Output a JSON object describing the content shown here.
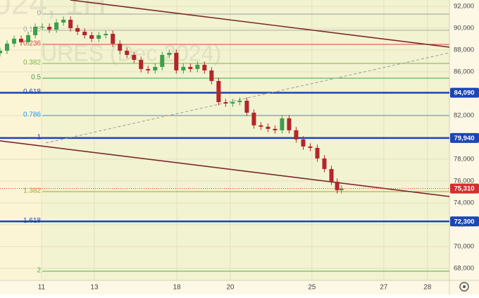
{
  "chart_data": {
    "type": "candlestick",
    "watermark": [
      "024, 1H",
      "URES (Dec 2024)"
    ],
    "x": [
      -1.53,
      -1.27,
      -1.01,
      -0.75,
      -0.49,
      -0.23,
      0.03,
      0.29,
      0.55,
      0.81,
      1.07,
      1.33,
      1.59,
      1.85,
      2.11,
      2.37,
      2.63,
      2.89,
      3.15,
      3.41,
      3.67,
      3.93,
      4.19,
      4.45,
      4.71,
      4.97,
      5.23,
      5.49,
      5.75,
      6.01,
      6.27,
      6.53,
      6.79,
      7.05,
      7.31,
      7.57,
      7.83,
      8.09,
      8.35,
      8.61,
      8.87,
      9.13,
      9.39,
      9.65,
      9.91,
      10.17,
      10.43,
      10.69,
      10.9,
      11.06
    ],
    "open": [
      87700,
      87936,
      88581,
      89033,
      88710,
      89355,
      90129,
      90129,
      89871,
      90516,
      90774,
      90000,
      89678,
      89355,
      89033,
      89355,
      89484,
      88581,
      87936,
      87549,
      87098,
      86259,
      86130,
      86453,
      87549,
      87743,
      86130,
      86453,
      86259,
      86646,
      86130,
      85163,
      83228,
      83099,
      83228,
      83357,
      82260,
      81099,
      80970,
      80777,
      80648,
      81744,
      80648,
      79809,
      79164,
      79035,
      78068,
      77100,
      75939,
      75165
    ],
    "high": [
      88236,
      88881,
      89333,
      89333,
      89655,
      90429,
      90429,
      90429,
      90816,
      91074,
      91074,
      90300,
      89978,
      89655,
      89655,
      89784,
      89784,
      88881,
      88236,
      87849,
      87398,
      86559,
      86753,
      87849,
      88043,
      88043,
      86753,
      86753,
      86946,
      86946,
      86430,
      85463,
      83528,
      83528,
      83657,
      83657,
      82560,
      81399,
      81270,
      81077,
      82044,
      82044,
      80948,
      80109,
      79464,
      79335,
      78368,
      77400,
      76239,
      75610
    ],
    "low": [
      87400,
      87636,
      88281,
      88410,
      88410,
      89055,
      89829,
      89571,
      89571,
      90216,
      89700,
      89378,
      89055,
      88733,
      88733,
      89055,
      88281,
      87636,
      87249,
      86798,
      85959,
      85830,
      85830,
      86153,
      87249,
      85830,
      85830,
      85959,
      85959,
      85830,
      84863,
      82928,
      82799,
      82799,
      82928,
      81960,
      80799,
      80670,
      80477,
      80348,
      80348,
      80348,
      79509,
      78864,
      78735,
      77768,
      76800,
      75639,
      74865,
      74865
    ],
    "close": [
      87936,
      88581,
      89033,
      88710,
      89355,
      90129,
      90129,
      89871,
      90516,
      90774,
      90000,
      89678,
      89355,
      89033,
      89355,
      89484,
      88581,
      87936,
      87549,
      87098,
      86259,
      86130,
      86453,
      87549,
      87743,
      86130,
      86453,
      86259,
      86646,
      86130,
      85163,
      83228,
      83099,
      83228,
      83357,
      82260,
      81099,
      80970,
      80777,
      80648,
      81744,
      80648,
      79809,
      79164,
      79035,
      78068,
      77100,
      75939,
      75165,
      75310
    ],
    "up_color": "#3f9e4a",
    "down_color": "#b3262a",
    "xlim": [
      -1.53,
      15.04
    ],
    "ylim": [
      66900,
      92580
    ],
    "xticks": [
      {
        "value": 0,
        "label": "11"
      },
      {
        "value": 1.95,
        "label": "13"
      },
      {
        "value": 4.99,
        "label": "18"
      },
      {
        "value": 6.96,
        "label": "20"
      },
      {
        "value": 9.97,
        "label": "25"
      },
      {
        "value": 12.62,
        "label": "27"
      },
      {
        "value": 14.23,
        "label": "28"
      }
    ],
    "yticks": [
      {
        "value": 92000,
        "label": "92,000"
      },
      {
        "value": 90000,
        "label": "90,000"
      },
      {
        "value": 88000,
        "label": "88,000"
      },
      {
        "value": 86000,
        "label": "86,000"
      },
      {
        "value": 84000,
        "label": "84,000"
      },
      {
        "value": 82000,
        "label": "82,000"
      },
      {
        "value": 80000,
        "label": "80,000"
      },
      {
        "value": 78000,
        "label": "78,000"
      },
      {
        "value": 76000,
        "label": "76,000"
      },
      {
        "value": 74000,
        "label": "74,000"
      },
      {
        "value": 72000,
        "label": "72,000"
      },
      {
        "value": 70000,
        "label": "70,000"
      },
      {
        "value": 68000,
        "label": "68,000"
      }
    ],
    "grid": true,
    "fib_levels": [
      {
        "label": "0",
        "value": 91290,
        "color": "#9e9e9e",
        "width": 1
      },
      {
        "label": "0.125",
        "value": 89806,
        "color": "#a8a8a8",
        "width": 1
      },
      {
        "label": "0.236",
        "value": 88516,
        "color": "#d84343",
        "width": 1
      },
      {
        "label": "0.382",
        "value": 86774,
        "color": "#7cb342",
        "width": 1
      },
      {
        "label": "0.5",
        "value": 85419,
        "color": "#43a047",
        "width": 1
      },
      {
        "label": "0.618",
        "value": 84090,
        "color": "#1c45b5",
        "width": 2.5
      },
      {
        "label": "0.786",
        "value": 82000,
        "color": "#2196f3",
        "width": 1
      },
      {
        "label": "1",
        "value": 79940,
        "color": "#1c45b5",
        "width": 2.5
      },
      {
        "label": "1.382",
        "value": 75030,
        "color": "#a3a32a",
        "width": 1
      },
      {
        "label": "1.618",
        "value": 72300,
        "color": "#1c45b5",
        "width": 2.5
      },
      {
        "label": "2",
        "value": 67742,
        "color": "#4caf50",
        "width": 1
      }
    ],
    "trendlines": [
      {
        "points": [
          [
            1.06,
            92580
          ],
          [
            15.04,
            88259
          ]
        ],
        "color": "#7a2a2a",
        "dashed": false
      },
      {
        "points": [
          [
            -1.53,
            79680
          ],
          [
            15.04,
            74585
          ]
        ],
        "color": "#7a2a2a",
        "dashed": false
      },
      {
        "points": [
          [
            0.16,
            79487
          ],
          [
            15.04,
            87743
          ]
        ],
        "color": "#9a9a9a",
        "dashed": true
      }
    ],
    "price_tags": [
      {
        "value": 84090,
        "label": "84,090",
        "color": "#1c45b5"
      },
      {
        "value": 79940,
        "label": "79,940",
        "color": "#1c45b5"
      },
      {
        "value": 75310,
        "label": "75,310",
        "color": "#d32f2f"
      },
      {
        "value": 72300,
        "label": "72,300",
        "color": "#1c45b5"
      }
    ]
  }
}
